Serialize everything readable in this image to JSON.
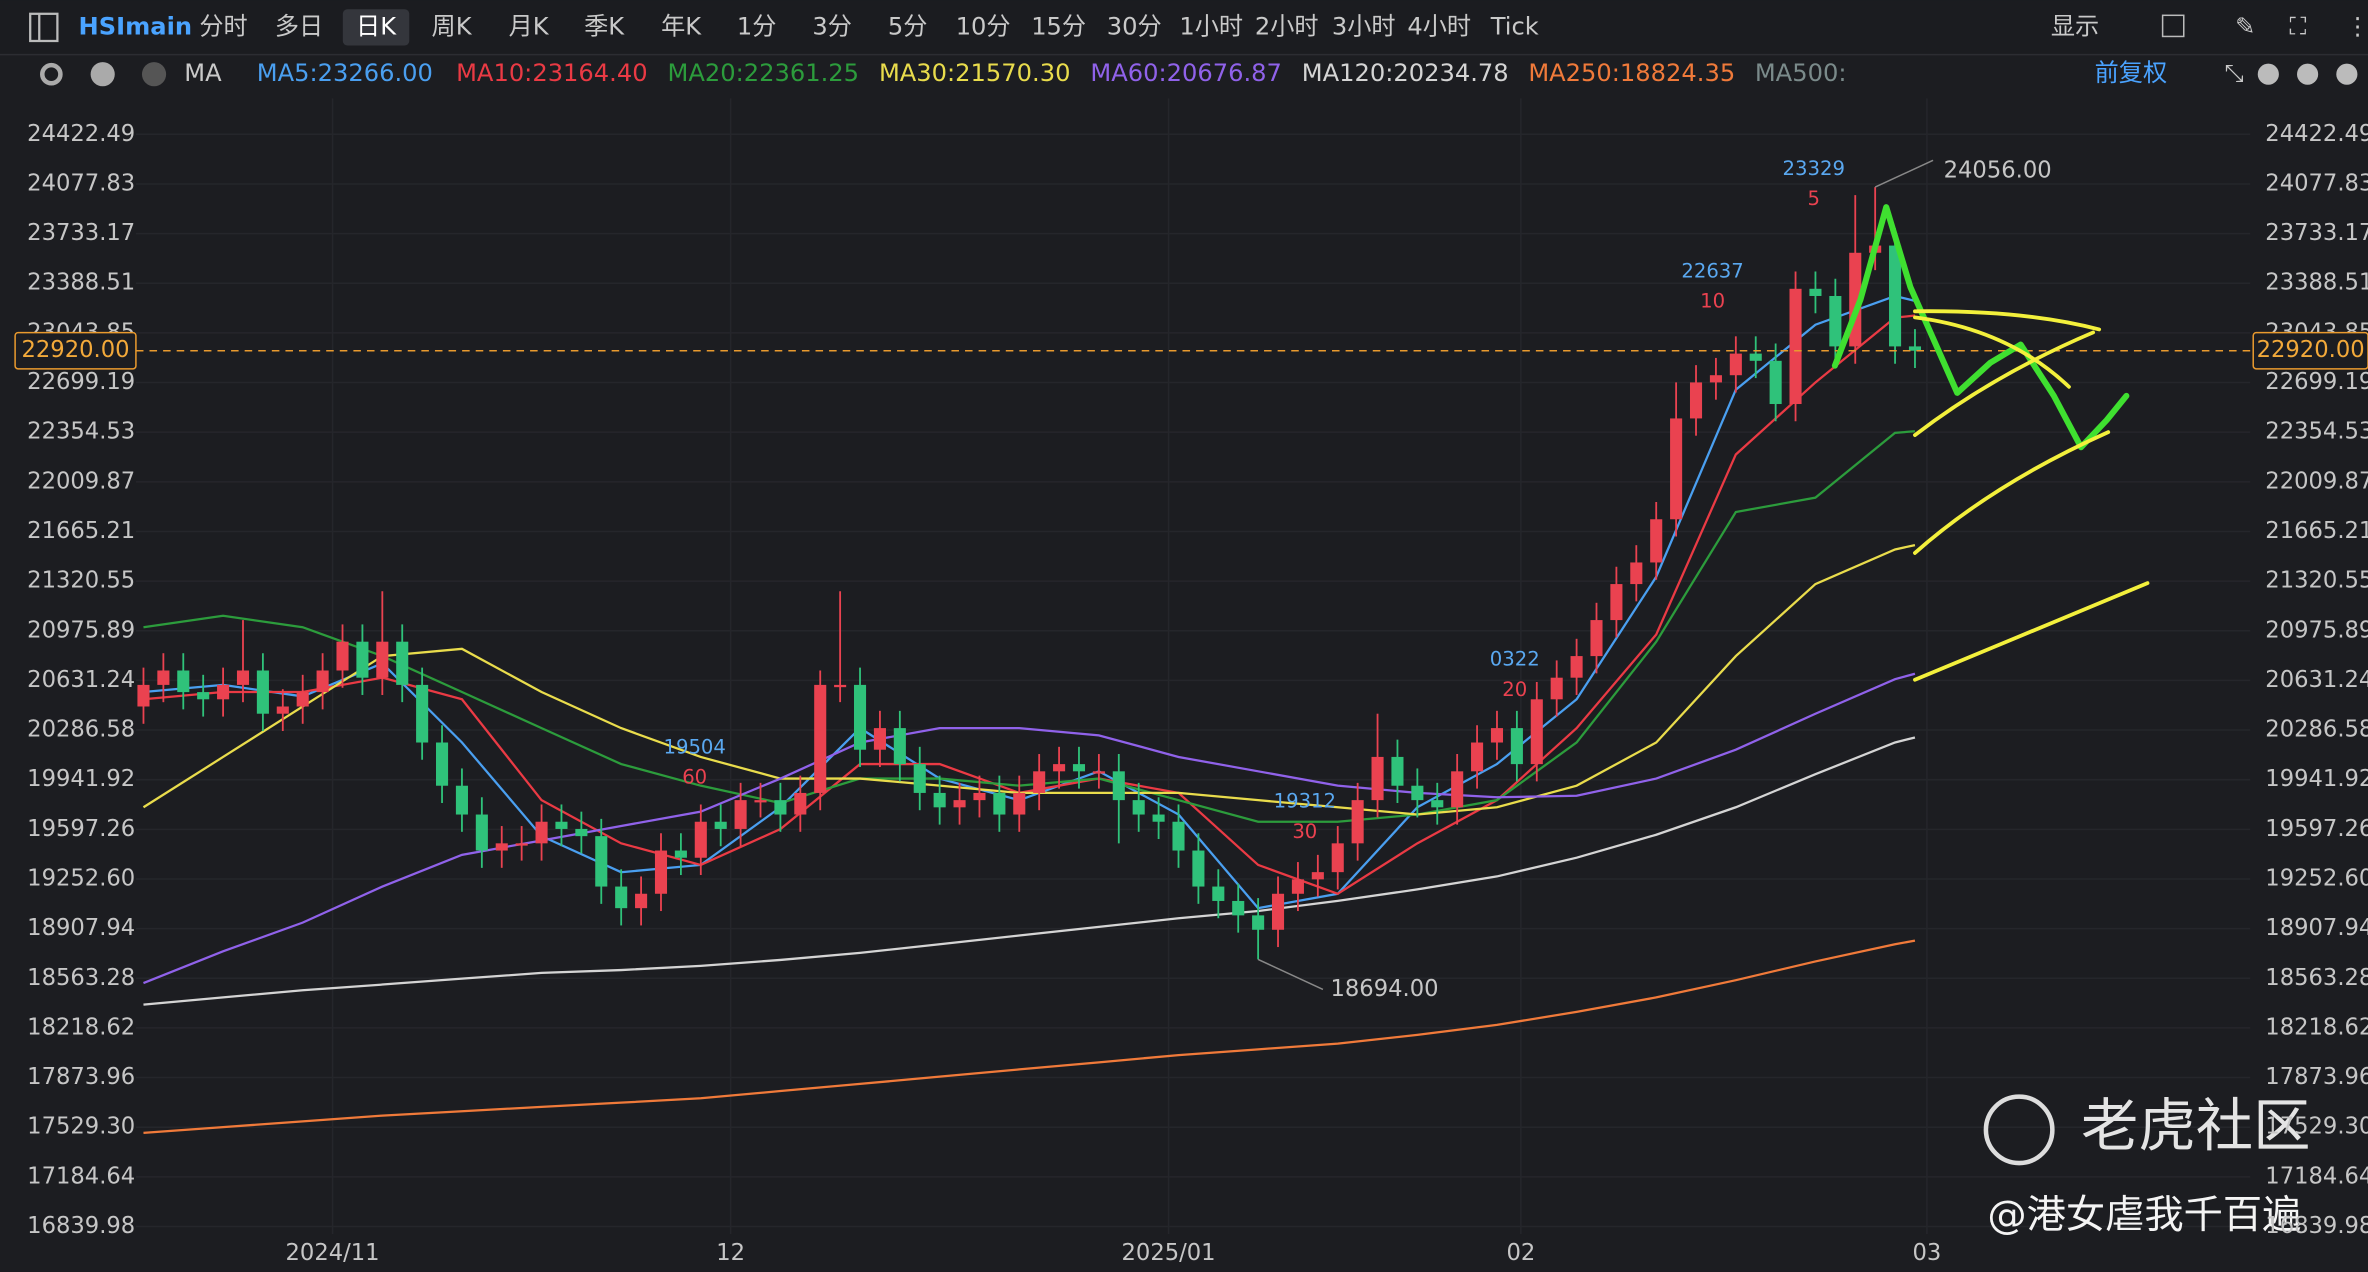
{
  "toolbar": {
    "symbol": "HSImain",
    "periods": [
      "分时",
      "多日",
      "日K",
      "周K",
      "月K",
      "季K",
      "年K",
      "1分",
      "3分",
      "5分",
      "10分",
      "15分",
      "30分",
      "1小时",
      "2小时",
      "3小时",
      "4小时",
      "Tick"
    ],
    "selected": "日K",
    "display": "显示",
    "indicator": "MA",
    "adjust": "前复权",
    "extra": "MA500:"
  },
  "watermark": {
    "brand": "老虎社区",
    "author": "@港女虐我千百遍"
  },
  "chart_data": {
    "type": "candlestick",
    "open": [
      20450,
      20600,
      20700,
      20550,
      20500,
      20600,
      20700,
      20400,
      20450,
      20550,
      20700,
      20900,
      20650,
      20900,
      20600,
      20200,
      19900,
      19700,
      19450,
      19500,
      19500,
      19650,
      19600,
      19550,
      19200,
      19050,
      19150,
      19450,
      19400,
      19650,
      19600,
      19800,
      19800,
      19700,
      19850,
      20600,
      20600,
      20150,
      20300,
      20050,
      19850,
      19750,
      19800,
      19850,
      19700,
      19850,
      20000,
      20050,
      20000,
      20000,
      19800,
      19700,
      19650,
      19450,
      19200,
      19100,
      19000,
      18900,
      19150,
      19250,
      19300,
      19500,
      19800,
      20100,
      19900,
      19800,
      19750,
      20000,
      20200,
      20300,
      20050,
      20500,
      20650,
      20800,
      21050,
      21300,
      21450,
      21750,
      22450,
      22700,
      22750,
      22900,
      22850,
      22550,
      23350,
      23300,
      22950,
      23600,
      23650,
      22950
    ],
    "high": [
      20720,
      20820,
      20820,
      20670,
      20720,
      21050,
      20820,
      20570,
      20670,
      20820,
      21020,
      21020,
      21250,
      21020,
      20720,
      20320,
      20020,
      19820,
      19620,
      19620,
      19770,
      19770,
      19720,
      19670,
      19320,
      19270,
      19570,
      19570,
      19770,
      19770,
      19920,
      19920,
      19920,
      19970,
      20700,
      21250,
      20720,
      20420,
      20420,
      20170,
      19970,
      19920,
      19970,
      19970,
      19970,
      20120,
      20170,
      20170,
      20120,
      20120,
      19920,
      19820,
      19770,
      19570,
      19320,
      19220,
      19120,
      19270,
      19370,
      19420,
      19620,
      19920,
      20400,
      20220,
      20020,
      19920,
      20120,
      20320,
      20420,
      20420,
      20620,
      20770,
      20920,
      21170,
      21420,
      21570,
      21870,
      22700,
      22820,
      22870,
      23020,
      23020,
      22970,
      23470,
      23470,
      23420,
      24000,
      24056,
      23770,
      23070
    ],
    "low": [
      20330,
      20480,
      20430,
      20380,
      20380,
      20480,
      20280,
      20280,
      20330,
      20430,
      20580,
      20530,
      20530,
      20480,
      20080,
      19780,
      19580,
      19330,
      19330,
      19380,
      19380,
      19480,
      19430,
      19080,
      18930,
      18930,
      19030,
      19280,
      19280,
      19480,
      19480,
      19680,
      19580,
      19580,
      19730,
      20480,
      20030,
      20030,
      19930,
      19730,
      19630,
      19630,
      19680,
      19580,
      19580,
      19730,
      19880,
      19880,
      19880,
      19500,
      19580,
      19530,
      19330,
      19080,
      18980,
      18880,
      18694,
      18780,
      19030,
      19130,
      19180,
      19380,
      19680,
      19780,
      19680,
      19630,
      19630,
      19880,
      20080,
      19930,
      19930,
      20380,
      20530,
      20680,
      20930,
      21180,
      21330,
      21630,
      22330,
      22580,
      22630,
      22730,
      22430,
      22430,
      23180,
      22830,
      22830,
      23480,
      22830,
      22800
    ],
    "close": [
      20600,
      20700,
      20550,
      20500,
      20600,
      20700,
      20400,
      20450,
      20550,
      20700,
      20900,
      20650,
      20900,
      20600,
      20200,
      19900,
      19700,
      19450,
      19500,
      19500,
      19650,
      19600,
      19550,
      19200,
      19050,
      19150,
      19450,
      19400,
      19650,
      19600,
      19800,
      19800,
      19700,
      19850,
      20600,
      20600,
      20150,
      20300,
      20050,
      19850,
      19750,
      19800,
      19850,
      19700,
      19850,
      20000,
      20050,
      20000,
      20000,
      19800,
      19700,
      19650,
      19450,
      19200,
      19100,
      19000,
      18900,
      19150,
      19250,
      19300,
      19500,
      19800,
      20100,
      19900,
      19800,
      19750,
      20000,
      20200,
      20300,
      20050,
      20500,
      20650,
      20800,
      21050,
      21300,
      21450,
      21750,
      22450,
      22700,
      22750,
      22900,
      22850,
      22550,
      23350,
      23300,
      22950,
      23600,
      23650,
      22950,
      22920
    ],
    "up_color": "#ea4250",
    "down_color": "#2fc27a",
    "ma_x": [
      0,
      4,
      8,
      12,
      16,
      20,
      24,
      28,
      32,
      36,
      40,
      44,
      48,
      52,
      56,
      60,
      64,
      68,
      72,
      76,
      80,
      84,
      88,
      89
    ],
    "series": [
      {
        "name": "MA5:23266.00",
        "color": "#4a9ff0",
        "values": [
          20550,
          20600,
          20520,
          20750,
          20200,
          19550,
          19300,
          19350,
          19750,
          20300,
          19950,
          19800,
          20000,
          19700,
          19050,
          19150,
          19750,
          20050,
          20500,
          21350,
          22650,
          23100,
          23300,
          23266
        ]
      },
      {
        "name": "MA10:23164.40",
        "color": "#ea3a44",
        "values": [
          20500,
          20550,
          20550,
          20650,
          20500,
          19800,
          19500,
          19350,
          19600,
          20050,
          20050,
          19850,
          19950,
          19850,
          19350,
          19150,
          19500,
          19800,
          20300,
          20950,
          22200,
          22700,
          23150,
          23164.4
        ]
      },
      {
        "name": "MA20:22361.25",
        "color": "#2c9c3c",
        "values": [
          21000,
          21080,
          21000,
          20800,
          20550,
          20300,
          20050,
          19900,
          19780,
          19950,
          19950,
          19900,
          19950,
          19800,
          19650,
          19650,
          19700,
          19800,
          20200,
          20900,
          21800,
          21900,
          22350,
          22361.25
        ]
      },
      {
        "name": "MA30:21570.30",
        "color": "#e9dc4c",
        "values": [
          19750,
          20100,
          20450,
          20800,
          20850,
          20550,
          20300,
          20100,
          19950,
          19950,
          19900,
          19850,
          19850,
          19850,
          19800,
          19750,
          19700,
          19750,
          19900,
          20200,
          20800,
          21300,
          21540,
          21570.3
        ]
      },
      {
        "name": "MA60:20676.87",
        "color": "#9062ea",
        "values": [
          18530,
          18750,
          18950,
          19200,
          19420,
          19520,
          19620,
          19720,
          19950,
          20200,
          20300,
          20300,
          20250,
          20100,
          20000,
          19900,
          19850,
          19820,
          19830,
          19950,
          20150,
          20400,
          20640,
          20676.87
        ]
      },
      {
        "name": "MA120:20234.78",
        "color": "#d4d4d4",
        "values": [
          18380,
          18430,
          18480,
          18520,
          18560,
          18600,
          18620,
          18650,
          18690,
          18740,
          18800,
          18860,
          18920,
          18980,
          19030,
          19100,
          19180,
          19270,
          19400,
          19560,
          19750,
          19980,
          20200,
          20234.78
        ]
      },
      {
        "name": "MA250:18824.35",
        "color": "#f07a3a",
        "values": [
          17490,
          17530,
          17570,
          17610,
          17640,
          17670,
          17700,
          17730,
          17780,
          17830,
          17880,
          17930,
          17980,
          18030,
          18070,
          18110,
          18170,
          18240,
          18330,
          18430,
          18550,
          18680,
          18800,
          18824.35
        ]
      }
    ],
    "ylim": [
      16839.98,
      24672
    ],
    "yticks": [
      24422.49,
      24077.83,
      23733.17,
      23388.51,
      23043.85,
      22699.19,
      22354.53,
      22009.87,
      21665.21,
      21320.55,
      20975.89,
      20631.24,
      20286.58,
      19941.92,
      19597.26,
      {
        "value": 19252.6,
        "label": "19252.60"
      },
      18907.94,
      18563.28,
      18218.62,
      17873.96,
      {
        "value": 17529.3,
        "label": "17529.30"
      },
      17184.64,
      16839.98
    ],
    "xticks": [
      {
        "value": 9.5,
        "label": "2024/11"
      },
      {
        "value": 29.5,
        "label": "12"
      },
      {
        "value": 51.5,
        "label": "2025/01"
      },
      {
        "value": 69.2,
        "label": "02"
      },
      {
        "value": 89.6,
        "label": "03"
      }
    ],
    "current_price": {
      "value": 22920,
      "label": "22920.00"
    },
    "annotations": [
      "24056.00",
      "18694.00"
    ],
    "ma_labels": [
      [
        "23329",
        "5"
      ],
      [
        "22637",
        "10"
      ],
      [
        "19504",
        "60"
      ],
      [
        "19312",
        "30"
      ],
      [
        "0322",
        "20"
      ]
    ]
  }
}
